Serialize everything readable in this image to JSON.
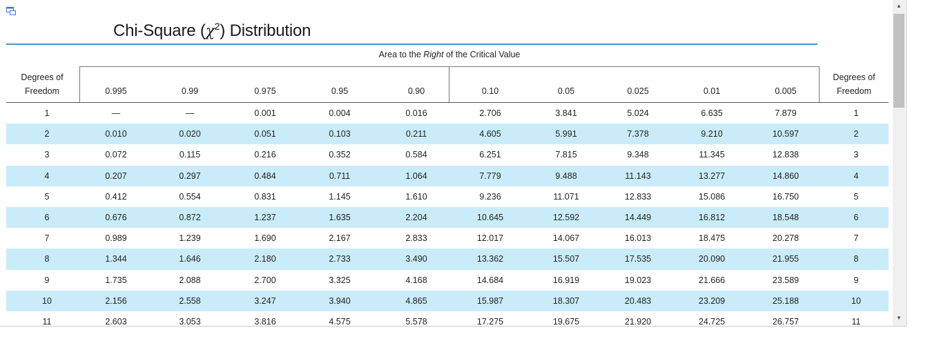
{
  "document": {
    "title_prefix": "Chi-Square (",
    "title_symbol": "χ",
    "title_exponent": "2",
    "title_suffix": ") Distribution",
    "area_label_before": "Area to the ",
    "area_label_emphasis": "Right",
    "area_label_after": " of the Critical Value"
  },
  "table": {
    "df_header_line1": "Degrees of",
    "df_header_line2": "Freedom",
    "areas": [
      "0.995",
      "0.99",
      "0.975",
      "0.95",
      "0.90",
      "0.10",
      "0.05",
      "0.025",
      "0.01",
      "0.005"
    ],
    "rows": [
      {
        "df": "1",
        "values": [
          "—",
          "—",
          "0.001",
          "0.004",
          "0.016",
          "2.706",
          "3.841",
          "5.024",
          "6.635",
          "7.879"
        ]
      },
      {
        "df": "2",
        "values": [
          "0.010",
          "0.020",
          "0.051",
          "0.103",
          "0.211",
          "4.605",
          "5.991",
          "7.378",
          "9.210",
          "10.597"
        ]
      },
      {
        "df": "3",
        "values": [
          "0.072",
          "0.115",
          "0.216",
          "0.352",
          "0.584",
          "6.251",
          "7.815",
          "9.348",
          "11.345",
          "12.838"
        ]
      },
      {
        "df": "4",
        "values": [
          "0.207",
          "0.297",
          "0.484",
          "0.711",
          "1.064",
          "7.779",
          "9.488",
          "11.143",
          "13.277",
          "14.860"
        ]
      },
      {
        "df": "5",
        "values": [
          "0.412",
          "0.554",
          "0.831",
          "1.145",
          "1.610",
          "9.236",
          "11.071",
          "12.833",
          "15.086",
          "16.750"
        ]
      },
      {
        "df": "6",
        "values": [
          "0.676",
          "0.872",
          "1.237",
          "1.635",
          "2.204",
          "10.645",
          "12.592",
          "14.449",
          "16.812",
          "18.548"
        ]
      },
      {
        "df": "7",
        "values": [
          "0.989",
          "1.239",
          "1.690",
          "2.167",
          "2.833",
          "12.017",
          "14.067",
          "16.013",
          "18.475",
          "20.278"
        ]
      },
      {
        "df": "8",
        "values": [
          "1.344",
          "1.646",
          "2.180",
          "2.733",
          "3.490",
          "13.362",
          "15.507",
          "17.535",
          "20.090",
          "21.955"
        ]
      },
      {
        "df": "9",
        "values": [
          "1.735",
          "2.088",
          "2.700",
          "3.325",
          "4.168",
          "14.684",
          "16.919",
          "19.023",
          "21.666",
          "23.589"
        ]
      },
      {
        "df": "10",
        "values": [
          "2.156",
          "2.558",
          "3.247",
          "3.940",
          "4.865",
          "15.987",
          "18.307",
          "20.483",
          "23.209",
          "25.188"
        ]
      },
      {
        "df": "11",
        "values": [
          "2.603",
          "3.053",
          "3.816",
          "4.575",
          "5.578",
          "17.275",
          "19.675",
          "21.920",
          "24.725",
          "26.757"
        ]
      }
    ]
  },
  "icons": {
    "corner": "window-restore-icon",
    "scroll_up": "chevron-up-icon",
    "scroll_down": "chevron-down-icon"
  },
  "colors": {
    "row_shade": "#c9ecf8",
    "title_rule": "#4a96c8"
  }
}
